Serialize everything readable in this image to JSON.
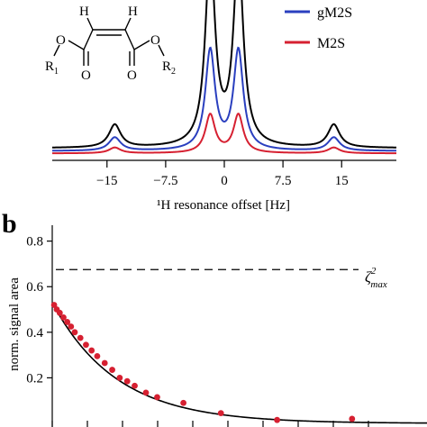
{
  "chart_data": [
    {
      "type": "line",
      "panel": "",
      "xlabel": "¹H resonance offset [Hz]",
      "ylabel": "",
      "xlim": [
        -22,
        22
      ],
      "x_ticks": [
        -15,
        -7.5,
        0,
        7.5,
        15
      ],
      "x_tick_labels": [
        "−15",
        "−7.5",
        "0",
        "7.5",
        "15"
      ],
      "legend_position": "top-right",
      "series": [
        {
          "name": "",
          "color": "#000000",
          "peaks": [
            {
              "x": -14,
              "h": 0.12
            },
            {
              "x": -1.8,
              "h": 1.0
            },
            {
              "x": 1.8,
              "h": 1.0
            },
            {
              "x": 14,
              "h": 0.12
            }
          ],
          "baseline": 0.035
        },
        {
          "name": "gM2S",
          "color": "#2a3fbf",
          "peaks": [
            {
              "x": -14,
              "h": 0.07
            },
            {
              "x": -1.8,
              "h": 0.52
            },
            {
              "x": 1.8,
              "h": 0.52
            },
            {
              "x": 14,
              "h": 0.07
            }
          ],
          "baseline": 0.02
        },
        {
          "name": "M2S",
          "color": "#d62031",
          "peaks": [
            {
              "x": -14,
              "h": 0.03
            },
            {
              "x": -1.8,
              "h": 0.2
            },
            {
              "x": 1.8,
              "h": 0.2
            },
            {
              "x": 14,
              "h": 0.03
            }
          ],
          "baseline": 0.008
        }
      ]
    },
    {
      "type": "scatter",
      "panel": "b",
      "xlabel": "",
      "ylabel": "norm. signal area",
      "ylim": [
        0,
        0.85
      ],
      "y_ticks": [
        0.2,
        0.4,
        0.6,
        0.8
      ],
      "y_tick_labels": [
        "0.2",
        "0.4",
        "0.6",
        "0.8"
      ],
      "x_range": [
        0,
        1
      ],
      "reference_line": {
        "y": 0.675,
        "style": "dashed"
      },
      "fit": {
        "color": "#000000",
        "a": 0.53,
        "k": 5.8
      },
      "points_color": "#d62031",
      "points": [
        {
          "x": 0.005,
          "y": 0.52
        },
        {
          "x": 0.012,
          "y": 0.5
        },
        {
          "x": 0.02,
          "y": 0.485
        },
        {
          "x": 0.03,
          "y": 0.465
        },
        {
          "x": 0.04,
          "y": 0.445
        },
        {
          "x": 0.05,
          "y": 0.425
        },
        {
          "x": 0.06,
          "y": 0.4
        },
        {
          "x": 0.075,
          "y": 0.375
        },
        {
          "x": 0.09,
          "y": 0.345
        },
        {
          "x": 0.105,
          "y": 0.32
        },
        {
          "x": 0.12,
          "y": 0.295
        },
        {
          "x": 0.14,
          "y": 0.265
        },
        {
          "x": 0.16,
          "y": 0.235
        },
        {
          "x": 0.18,
          "y": 0.2
        },
        {
          "x": 0.2,
          "y": 0.185
        },
        {
          "x": 0.22,
          "y": 0.165
        },
        {
          "x": 0.25,
          "y": 0.135
        },
        {
          "x": 0.28,
          "y": 0.115
        },
        {
          "x": 0.35,
          "y": 0.09
        },
        {
          "x": 0.45,
          "y": 0.045
        },
        {
          "x": 0.6,
          "y": 0.015
        },
        {
          "x": 0.8,
          "y": 0.02
        }
      ]
    }
  ],
  "annotations": {
    "zeta_symbol": "ζ",
    "zeta_sup": "2",
    "zeta_sub": "max"
  },
  "molecule": {
    "h_left": "H",
    "h_right": "H",
    "o_left": "O",
    "o_right": "O",
    "r1": "R",
    "r1_sub": "1",
    "r2": "R",
    "r2_sub": "2"
  }
}
